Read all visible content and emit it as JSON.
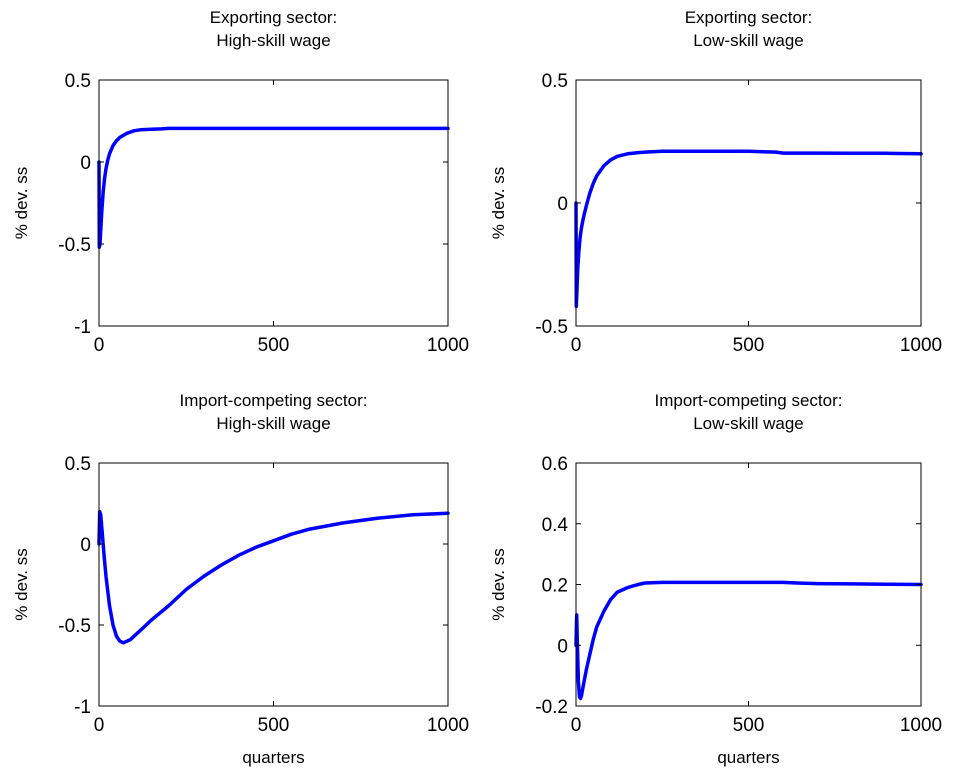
{
  "chart_data": [
    {
      "type": "line",
      "title_lines": [
        "Exporting sector:",
        "High-skill wage"
      ],
      "xlabel": "",
      "ylabel": "% dev. ss",
      "xlim": [
        0,
        1000
      ],
      "ylim": [
        -1,
        0.5
      ],
      "xticks": [
        0,
        500,
        1000
      ],
      "yticks": [
        -1,
        -0.5,
        0,
        0.5
      ],
      "xtick_labels": [
        "0",
        "500",
        "1000"
      ],
      "ytick_labels": [
        "-1",
        "-0.5",
        "0",
        "0.5"
      ],
      "grid": false,
      "line_color": "#0000ff",
      "series": [
        {
          "x": [
            0,
            1,
            3,
            5,
            8,
            12,
            16,
            20,
            25,
            30,
            40,
            50,
            60,
            80,
            100,
            120,
            150,
            180,
            200,
            230,
            300,
            400,
            500,
            600,
            700,
            800,
            900,
            1000
          ],
          "y": [
            0.0,
            -0.52,
            -0.5,
            -0.42,
            -0.3,
            -0.18,
            -0.1,
            -0.04,
            0.01,
            0.05,
            0.1,
            0.13,
            0.15,
            0.175,
            0.19,
            0.197,
            0.2,
            0.202,
            0.205,
            0.205,
            0.205,
            0.205,
            0.205,
            0.205,
            0.205,
            0.205,
            0.205,
            0.205
          ]
        }
      ]
    },
    {
      "type": "line",
      "title_lines": [
        "Exporting sector:",
        "Low-skill wage"
      ],
      "xlabel": "",
      "ylabel": "% dev. ss",
      "xlim": [
        0,
        1000
      ],
      "ylim": [
        -0.5,
        0.5
      ],
      "xticks": [
        0,
        500,
        1000
      ],
      "yticks": [
        -0.5,
        0,
        0.5
      ],
      "xtick_labels": [
        "0",
        "500",
        "1000"
      ],
      "ytick_labels": [
        "-0.5",
        "0",
        "0.5"
      ],
      "grid": false,
      "line_color": "#0000ff",
      "series": [
        {
          "x": [
            0,
            1,
            3,
            5,
            8,
            12,
            16,
            20,
            25,
            30,
            40,
            50,
            60,
            80,
            100,
            120,
            150,
            180,
            200,
            250,
            300,
            400,
            500,
            580,
            600,
            700,
            800,
            900,
            1000
          ],
          "y": [
            0.0,
            -0.42,
            -0.35,
            -0.27,
            -0.2,
            -0.14,
            -0.1,
            -0.07,
            -0.04,
            -0.01,
            0.04,
            0.08,
            0.11,
            0.15,
            0.175,
            0.19,
            0.2,
            0.205,
            0.207,
            0.21,
            0.21,
            0.21,
            0.21,
            0.207,
            0.203,
            0.203,
            0.202,
            0.202,
            0.2
          ]
        }
      ]
    },
    {
      "type": "line",
      "title_lines": [
        "Import-competing sector:",
        "High-skill wage"
      ],
      "xlabel": "quarters",
      "ylabel": "% dev. ss",
      "xlim": [
        0,
        1000
      ],
      "ylim": [
        -1,
        0.5
      ],
      "xticks": [
        0,
        500,
        1000
      ],
      "yticks": [
        -1,
        -0.5,
        0,
        0.5
      ],
      "xtick_labels": [
        "0",
        "500",
        "1000"
      ],
      "ytick_labels": [
        "-1",
        "-0.5",
        "0",
        "0.5"
      ],
      "grid": false,
      "line_color": "#0000ff",
      "series": [
        {
          "x": [
            0,
            2,
            5,
            10,
            15,
            20,
            30,
            40,
            50,
            60,
            70,
            80,
            90,
            100,
            120,
            150,
            200,
            250,
            300,
            350,
            400,
            450,
            500,
            550,
            600,
            700,
            800,
            900,
            1000
          ],
          "y": [
            0.0,
            0.2,
            0.18,
            0.05,
            -0.08,
            -0.2,
            -0.38,
            -0.5,
            -0.57,
            -0.6,
            -0.61,
            -0.6,
            -0.59,
            -0.57,
            -0.53,
            -0.47,
            -0.38,
            -0.28,
            -0.2,
            -0.13,
            -0.07,
            -0.02,
            0.02,
            0.06,
            0.09,
            0.13,
            0.16,
            0.18,
            0.19
          ]
        }
      ]
    },
    {
      "type": "line",
      "title_lines": [
        "Import-competing sector:",
        "Low-skill wage"
      ],
      "xlabel": "quarters",
      "ylabel": "% dev. ss",
      "xlim": [
        0,
        1000
      ],
      "ylim": [
        -0.2,
        0.6
      ],
      "xticks": [
        0,
        500,
        1000
      ],
      "yticks": [
        -0.2,
        0,
        0.2,
        0.4,
        0.6
      ],
      "xtick_labels": [
        "0",
        "500",
        "1000"
      ],
      "ytick_labels": [
        "-0.2",
        "0",
        "0.2",
        "0.4",
        "0.6"
      ],
      "grid": false,
      "line_color": "#0000ff",
      "series": [
        {
          "x": [
            0,
            2,
            4,
            7,
            10,
            13,
            16,
            20,
            25,
            30,
            40,
            50,
            60,
            80,
            100,
            120,
            150,
            180,
            200,
            250,
            300,
            400,
            500,
            600,
            640,
            700,
            800,
            900,
            1000
          ],
          "y": [
            0.0,
            0.1,
            0.0,
            -0.12,
            -0.17,
            -0.175,
            -0.165,
            -0.14,
            -0.11,
            -0.08,
            -0.03,
            0.02,
            0.06,
            0.11,
            0.15,
            0.175,
            0.19,
            0.2,
            0.205,
            0.207,
            0.207,
            0.207,
            0.207,
            0.207,
            0.205,
            0.203,
            0.202,
            0.201,
            0.2
          ]
        }
      ]
    }
  ]
}
